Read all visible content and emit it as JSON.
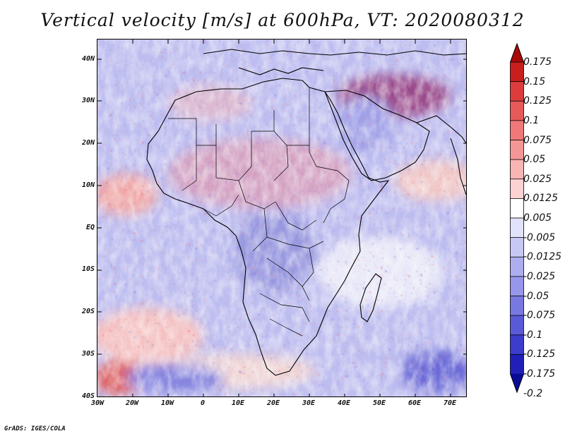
{
  "title": "Vertical velocity [m/s] at 600hPa, VT: 2020080312",
  "footer": "GrADS: IGES/COLA",
  "map": {
    "lat_ticks": [
      "40N",
      "30N",
      "20N",
      "10N",
      "EQ",
      "10S",
      "20S",
      "30S",
      "40S"
    ],
    "lon_ticks": [
      "30W",
      "20W",
      "10W",
      "0",
      "10E",
      "20E",
      "30E",
      "40E",
      "50E",
      "60E",
      "70E"
    ],
    "lat_range": [
      -40,
      45
    ],
    "lon_range": [
      -30,
      75
    ]
  },
  "colorbar": {
    "labels": [
      "0.175",
      "0.15",
      "0.125",
      "0.1",
      "0.075",
      "0.05",
      "0.025",
      "0.0125",
      "0.005",
      "-0.005",
      "-0.0125",
      "-0.025",
      "-0.05",
      "-0.075",
      "-0.1",
      "-0.125",
      "-0.175",
      "-0.2"
    ],
    "colors": [
      "#a80a0a",
      "#c81e1e",
      "#dc3c3c",
      "#e65a5a",
      "#f07878",
      "#f59696",
      "#f9b4b4",
      "#fcd2d2",
      "#ffffff",
      "#e2e2fa",
      "#c8c8f5",
      "#adadf0",
      "#9696eb",
      "#7878e1",
      "#5a5ad7",
      "#3c3ccd",
      "#2020b9",
      "#0a0a96"
    ]
  }
}
